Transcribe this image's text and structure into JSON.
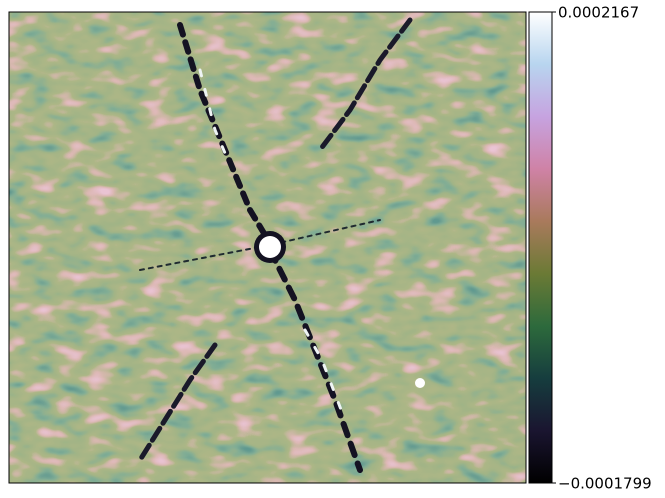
{
  "chart_data": {
    "type": "image",
    "colormap": "cubehelix",
    "clim": [
      -0.0001799,
      0.0002167
    ],
    "cticks": [
      {
        "value": -0.0001799,
        "label": "−0.0001799"
      },
      0.0002167
    ]
  }
}
